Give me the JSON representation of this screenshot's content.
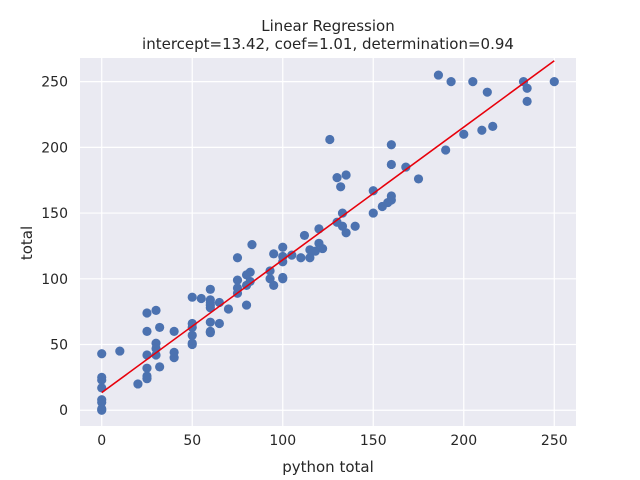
{
  "chart_data": {
    "type": "scatter",
    "title": "Linear Regression",
    "subtitle": "intercept=13.42, coef=1.01, determination=0.94",
    "xlabel": "python total",
    "ylabel": "total",
    "xlim": [
      -12,
      262
    ],
    "ylim": [
      -12,
      268
    ],
    "xticks": [
      0,
      50,
      100,
      150,
      200,
      250
    ],
    "yticks": [
      0,
      50,
      100,
      150,
      200,
      250
    ],
    "grid": true,
    "colors": {
      "background": "#EAEAF2",
      "grid": "#FFFFFF",
      "points": "#4C72B0",
      "line": "#E8000B"
    },
    "regression_line": {
      "x": [
        0,
        250
      ],
      "y": [
        13.42,
        265.92
      ]
    },
    "points": [
      [
        0,
        0
      ],
      [
        0,
        1
      ],
      [
        0,
        6
      ],
      [
        0,
        8
      ],
      [
        0,
        17
      ],
      [
        0,
        23
      ],
      [
        0,
        25
      ],
      [
        0,
        43
      ],
      [
        10,
        45
      ],
      [
        20,
        20
      ],
      [
        25,
        24
      ],
      [
        25,
        26
      ],
      [
        25,
        32
      ],
      [
        25,
        42
      ],
      [
        25,
        60
      ],
      [
        25,
        74
      ],
      [
        30,
        42
      ],
      [
        30,
        47
      ],
      [
        30,
        51
      ],
      [
        30,
        76
      ],
      [
        32,
        33
      ],
      [
        32,
        63
      ],
      [
        40,
        40
      ],
      [
        40,
        44
      ],
      [
        40,
        60
      ],
      [
        50,
        50
      ],
      [
        50,
        51
      ],
      [
        50,
        57
      ],
      [
        50,
        63
      ],
      [
        50,
        66
      ],
      [
        50,
        86
      ],
      [
        55,
        85
      ],
      [
        60,
        59
      ],
      [
        60,
        60
      ],
      [
        60,
        67
      ],
      [
        60,
        78
      ],
      [
        60,
        80
      ],
      [
        60,
        82
      ],
      [
        60,
        84
      ],
      [
        60,
        92
      ],
      [
        65,
        66
      ],
      [
        65,
        82
      ],
      [
        70,
        77
      ],
      [
        75,
        89
      ],
      [
        75,
        93
      ],
      [
        75,
        99
      ],
      [
        75,
        116
      ],
      [
        80,
        80
      ],
      [
        80,
        95
      ],
      [
        80,
        103
      ],
      [
        82,
        98
      ],
      [
        82,
        105
      ],
      [
        83,
        126
      ],
      [
        93,
        100
      ],
      [
        93,
        106
      ],
      [
        95,
        95
      ],
      [
        95,
        119
      ],
      [
        100,
        100
      ],
      [
        100,
        101
      ],
      [
        100,
        113
      ],
      [
        100,
        117
      ],
      [
        100,
        124
      ],
      [
        105,
        118
      ],
      [
        110,
        116
      ],
      [
        112,
        133
      ],
      [
        115,
        116
      ],
      [
        115,
        122
      ],
      [
        118,
        121
      ],
      [
        120,
        138
      ],
      [
        120,
        127
      ],
      [
        122,
        123
      ],
      [
        126,
        206
      ],
      [
        130,
        143
      ],
      [
        130,
        177
      ],
      [
        132,
        170
      ],
      [
        133,
        140
      ],
      [
        133,
        150
      ],
      [
        135,
        135
      ],
      [
        135,
        179
      ],
      [
        140,
        140
      ],
      [
        150,
        150
      ],
      [
        150,
        167
      ],
      [
        155,
        155
      ],
      [
        158,
        158
      ],
      [
        160,
        160
      ],
      [
        160,
        163
      ],
      [
        160,
        187
      ],
      [
        160,
        202
      ],
      [
        168,
        185
      ],
      [
        175,
        176
      ],
      [
        186,
        255
      ],
      [
        190,
        198
      ],
      [
        193,
        250
      ],
      [
        200,
        210
      ],
      [
        205,
        250
      ],
      [
        210,
        213
      ],
      [
        213,
        242
      ],
      [
        216,
        216
      ],
      [
        233,
        250
      ],
      [
        235,
        235
      ],
      [
        235,
        245
      ],
      [
        250,
        250
      ]
    ]
  }
}
